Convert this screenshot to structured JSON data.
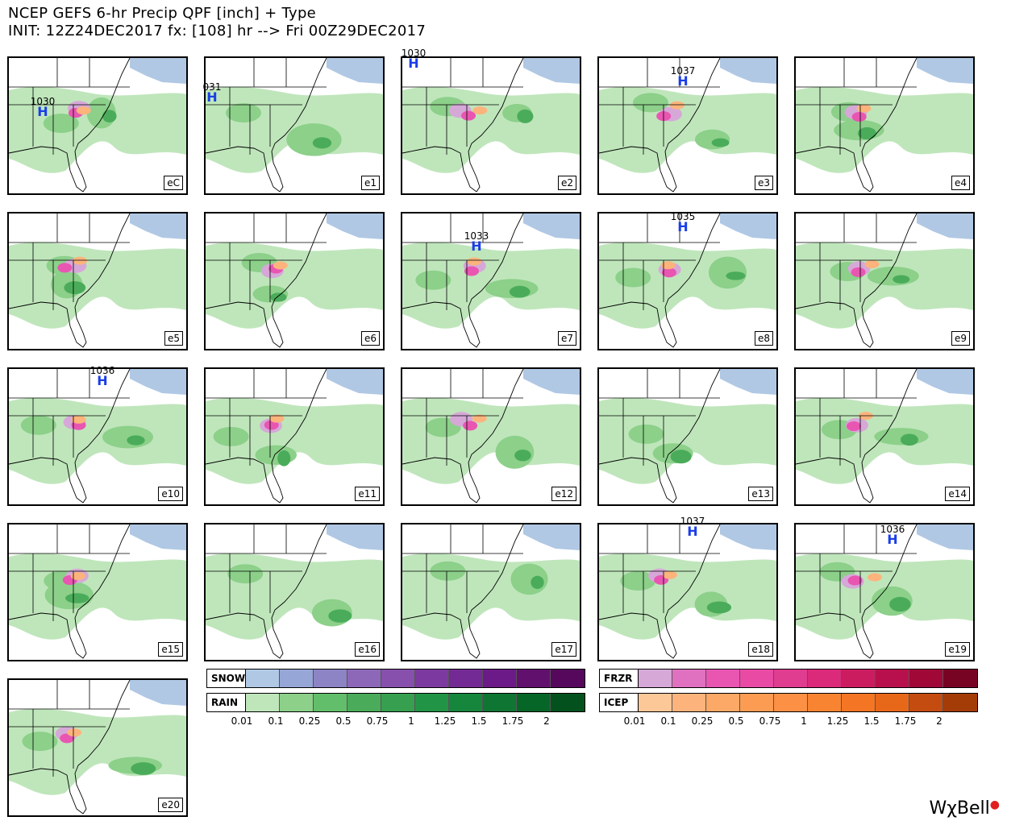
{
  "header": {
    "line1": "NCEP GEFS 6-hr Precip QPF [inch] + Type",
    "line2": "INIT: 12Z24DEC2017 fx: [108] hr --> Fri 00Z29DEC2017"
  },
  "panels": [
    {
      "label": "eC",
      "high": "1030"
    },
    {
      "label": "e1",
      "high": "031"
    },
    {
      "label": "e2",
      "high": "1030"
    },
    {
      "label": "e3",
      "high": "1037"
    },
    {
      "label": "e4",
      "high": ""
    },
    {
      "label": "e5",
      "high": ""
    },
    {
      "label": "e6",
      "high": ""
    },
    {
      "label": "e7",
      "high": "1033"
    },
    {
      "label": "e8",
      "high": "1035"
    },
    {
      "label": "e9",
      "high": ""
    },
    {
      "label": "e10",
      "high": "1036"
    },
    {
      "label": "e11",
      "high": ""
    },
    {
      "label": "e12",
      "high": ""
    },
    {
      "label": "e13",
      "high": ""
    },
    {
      "label": "e14",
      "high": ""
    },
    {
      "label": "e15",
      "high": ""
    },
    {
      "label": "e16",
      "high": ""
    },
    {
      "label": "e17",
      "high": ""
    },
    {
      "label": "e18",
      "high": "1037"
    },
    {
      "label": "e19",
      "high": "1036"
    },
    {
      "label": "e20",
      "high": ""
    }
  ],
  "high_symbol": "H",
  "legend": {
    "snow_label": "SNOW",
    "rain_label": "RAIN",
    "frzr_label": "FRZR",
    "icep_label": "ICEP",
    "ticks": [
      "0.01",
      "0.1",
      "0.25",
      "0.5",
      "0.75",
      "1",
      "1.25",
      "1.5",
      "1.75",
      "2"
    ],
    "snow_colors": [
      "#b0c8e4",
      "#96a6d6",
      "#8c84c4",
      "#8e68b8",
      "#8650ac",
      "#7c3aa0",
      "#742a94",
      "#6c1a88",
      "#62106e",
      "#56085c"
    ],
    "rain_colors": [
      "#bfe6bb",
      "#8cd08a",
      "#62be6a",
      "#4aac5a",
      "#36a050",
      "#229446",
      "#15863c",
      "#0e7632",
      "#066628",
      "#03521e"
    ],
    "frzr_colors": [
      "#d6a8d8",
      "#e070c0",
      "#e856b2",
      "#e84aa4",
      "#e03c90",
      "#dc2a7a",
      "#cc1c60",
      "#b8104c",
      "#a00838",
      "#780424"
    ],
    "icep_colors": [
      "#fcc898",
      "#fcb47c",
      "#fca866",
      "#fc9c52",
      "#fc9044",
      "#f88432",
      "#f47624",
      "#e8681a",
      "#c44c10",
      "#a43c08"
    ]
  },
  "brand": "WχBell"
}
